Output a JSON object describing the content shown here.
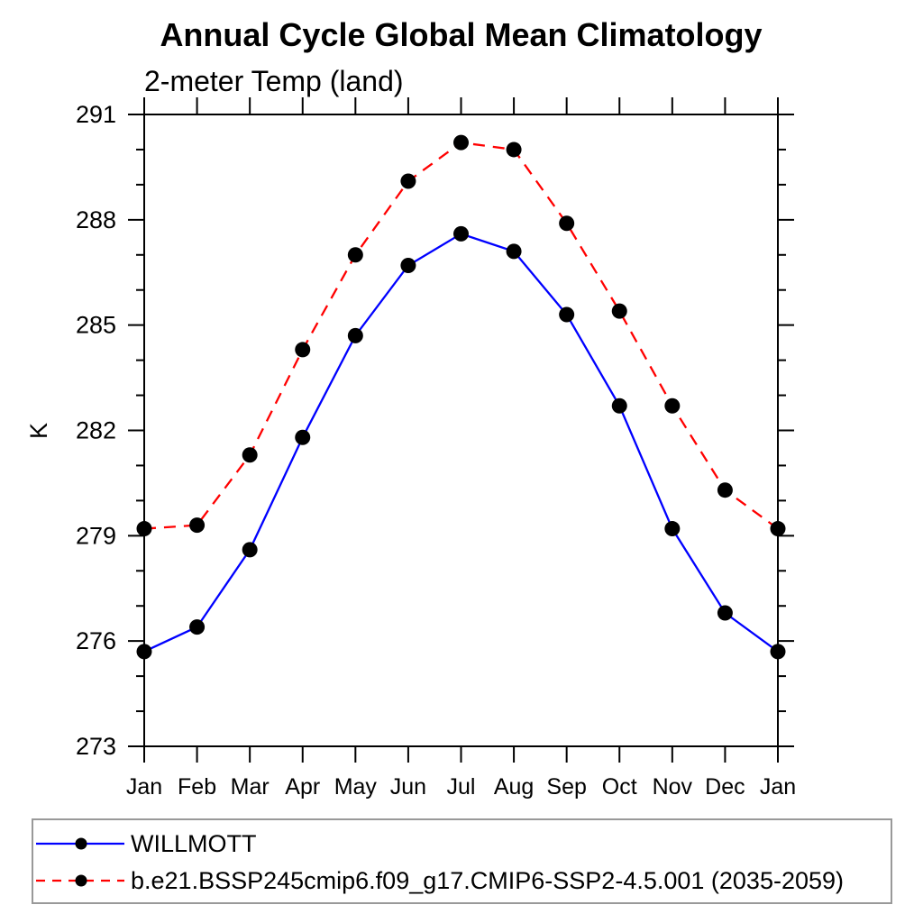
{
  "page": {
    "background": "#ffffff"
  },
  "chart_data": {
    "type": "line",
    "title": "Annual Cycle Global Mean Climatology",
    "subtitle": "2-meter Temp (land)",
    "ylabel": "K",
    "x_categories": [
      "Jan",
      "Feb",
      "Mar",
      "Apr",
      "May",
      "Jun",
      "Jul",
      "Aug",
      "Sep",
      "Oct",
      "Nov",
      "Dec",
      "Jan"
    ],
    "y_axis": {
      "min": 273,
      "max": 291,
      "major_step": 3,
      "minor_step": 1,
      "major_tick_labels": [
        "273",
        "276",
        "279",
        "282",
        "285",
        "288",
        "291"
      ]
    },
    "grid": false,
    "legend_position": "bottom",
    "axis_color": "#000000",
    "marker_color": "#000000",
    "series": [
      {
        "name": "WILLMOTT",
        "color": "#0000ff",
        "line_style": "solid",
        "marker": "filled-circle",
        "values": [
          275.7,
          276.4,
          278.6,
          281.8,
          284.7,
          286.7,
          287.6,
          287.1,
          285.3,
          282.7,
          279.2,
          276.8,
          275.7
        ]
      },
      {
        "name": "b.e21.BSSP245cmip6.f09_g17.CMIP6-SSP2-4.5.001 (2035-2059)",
        "color": "#ff0000",
        "line_style": "dashed",
        "marker": "filled-circle",
        "values": [
          279.2,
          279.3,
          281.3,
          284.3,
          287.0,
          289.1,
          290.2,
          290.0,
          287.9,
          285.4,
          282.7,
          280.3,
          279.2
        ]
      }
    ]
  }
}
